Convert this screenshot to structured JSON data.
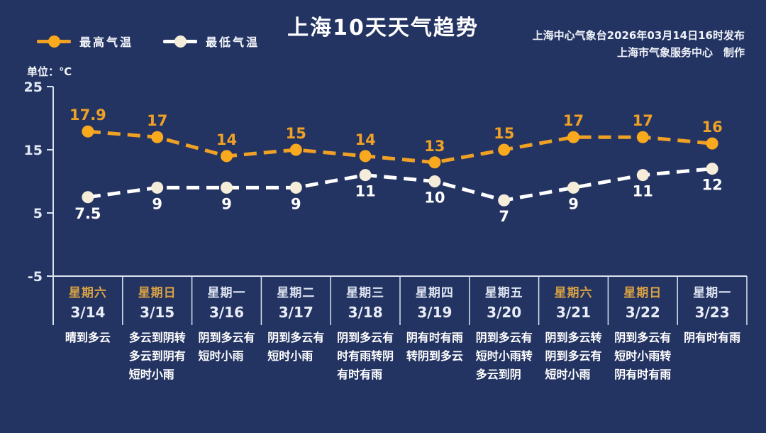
{
  "page": {
    "title": "上海10天天气趋势"
  },
  "header": {
    "source_line1": "上海中心气象台2026年03月14日16时发布",
    "source_line2": "上海市气象服务中心　制作"
  },
  "colors": {
    "background": "#243462",
    "axis": "#DCE3F0",
    "high_line": "#F0A125",
    "high_marker": "#F8A91E",
    "high_label": "#EFA125",
    "low_line": "#FFFFFF",
    "low_marker": "#F5EDDA",
    "low_label": "#FFFFFF",
    "weekend_text": "#D9A243",
    "weekday_text": "#DDE4F0",
    "date_text": "#E8EDF7",
    "weather_text": "#FFFFFF"
  },
  "chart_data": {
    "type": "line",
    "title": "上海10天天气趋势",
    "unit": "单位：℃",
    "line_style": "dashed",
    "grid": false,
    "legend_position": "top-left",
    "yticks": [
      25,
      15,
      5,
      -5
    ],
    "ylim": [
      -5,
      25
    ],
    "x": [
      "3/14",
      "3/15",
      "3/16",
      "3/17",
      "3/18",
      "3/19",
      "3/20",
      "3/21",
      "3/22",
      "3/23"
    ],
    "series": [
      {
        "name": "最高气温",
        "values": [
          17.9,
          17,
          14,
          15,
          14,
          13,
          15,
          17,
          17,
          16
        ],
        "labels": [
          "17.9",
          "17",
          "14",
          "15",
          "14",
          "13",
          "15",
          "17",
          "17",
          "16"
        ]
      },
      {
        "name": "最低气温",
        "values": [
          7.5,
          9,
          9,
          9,
          11,
          10,
          7,
          9,
          11,
          12
        ],
        "labels": [
          "7.5",
          "9",
          "9",
          "9",
          "11",
          "10",
          "7",
          "9",
          "11",
          "12"
        ]
      }
    ]
  },
  "table": {
    "days": [
      {
        "weekday": "星期六",
        "weekend": true,
        "date": "3/14",
        "weather": [
          "晴到多云"
        ]
      },
      {
        "weekday": "星期日",
        "weekend": true,
        "date": "3/15",
        "weather": [
          "多云到阴转",
          "多云到阴有",
          "短时小雨"
        ]
      },
      {
        "weekday": "星期一",
        "weekend": false,
        "date": "3/16",
        "weather": [
          "阴到多云有",
          "短时小雨"
        ]
      },
      {
        "weekday": "星期二",
        "weekend": false,
        "date": "3/17",
        "weather": [
          "阴到多云有",
          "短时小雨"
        ]
      },
      {
        "weekday": "星期三",
        "weekend": false,
        "date": "3/18",
        "weather": [
          "阴到多云有",
          "时有雨转阴",
          "有时有雨"
        ]
      },
      {
        "weekday": "星期四",
        "weekend": false,
        "date": "3/19",
        "weather": [
          "阴有时有雨",
          "转阴到多云"
        ]
      },
      {
        "weekday": "星期五",
        "weekend": false,
        "date": "3/20",
        "weather": [
          "阴到多云有",
          "短时小雨转",
          "多云到阴"
        ]
      },
      {
        "weekday": "星期六",
        "weekend": true,
        "date": "3/21",
        "weather": [
          "阴到多云转",
          "阴到多云有",
          "短时小雨"
        ]
      },
      {
        "weekday": "星期日",
        "weekend": true,
        "date": "3/22",
        "weather": [
          "阴到多云有",
          "短时小雨转",
          "阴有时有雨"
        ]
      },
      {
        "weekday": "星期一",
        "weekend": false,
        "date": "3/23",
        "weather": [
          "阴有时有雨"
        ]
      }
    ]
  }
}
